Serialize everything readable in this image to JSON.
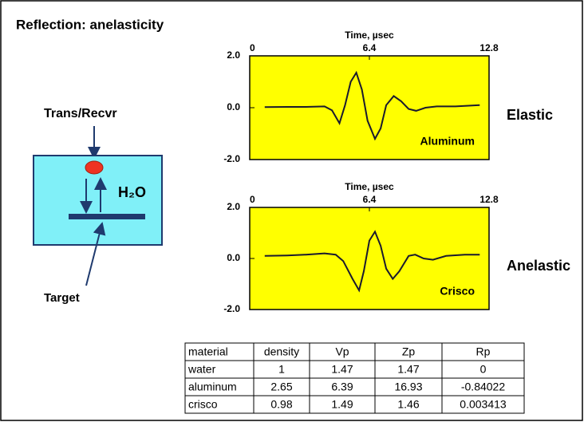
{
  "title": "Reflection:  anelasticity",
  "diagram": {
    "transducer": "Trans/Recvr",
    "medium": "H₂O",
    "target": "Target"
  },
  "chart_data": [
    {
      "type": "line",
      "xlabel": "Time,  µsec",
      "annotation": "Aluminum",
      "side_label": "Elastic",
      "xlim": [
        0,
        12.8
      ],
      "xticks": [
        0,
        6.4,
        12.8
      ],
      "ylim": [
        -2,
        2
      ],
      "yticks": [
        {
          "value": 2,
          "label": "2.0"
        },
        {
          "value": 0,
          "label": "0.0"
        },
        {
          "value": -2,
          "label": "-2.0"
        }
      ],
      "color": "#1a1a2e",
      "x": [
        0.8,
        2,
        3,
        4,
        4.4,
        4.8,
        5.1,
        5.4,
        5.7,
        6.0,
        6.3,
        6.7,
        7.0,
        7.3,
        7.7,
        8.1,
        8.5,
        8.9,
        9.4,
        10,
        11,
        12.3
      ],
      "values": [
        0.02,
        0.03,
        0.03,
        0.05,
        -0.1,
        -0.6,
        0.1,
        1.0,
        1.35,
        0.7,
        -0.5,
        -1.2,
        -0.8,
        0.1,
        0.45,
        0.25,
        -0.05,
        -0.12,
        0.0,
        0.05,
        0.05,
        0.1
      ]
    },
    {
      "type": "line",
      "xlabel": "Time,  µsec",
      "annotation": "Crisco",
      "side_label": "Anelastic",
      "xlim": [
        0,
        12.8
      ],
      "xticks": [
        0,
        6.4,
        12.8
      ],
      "ylim": [
        -2,
        2
      ],
      "yticks": [
        {
          "value": 2,
          "label": "2.0"
        },
        {
          "value": 0,
          "label": "0.0"
        },
        {
          "value": -2,
          "label": "-2.0"
        }
      ],
      "color": "#1a1a2e",
      "x": [
        0.8,
        2,
        3,
        4,
        4.6,
        5.0,
        5.5,
        5.85,
        6.1,
        6.4,
        6.7,
        7.0,
        7.3,
        7.65,
        8.0,
        8.5,
        8.85,
        9.3,
        9.8,
        10.5,
        11.5,
        12.3
      ],
      "values": [
        0.1,
        0.12,
        0.15,
        0.2,
        0.15,
        -0.1,
        -0.8,
        -1.25,
        -0.5,
        0.7,
        1.05,
        0.5,
        -0.4,
        -0.8,
        -0.5,
        0.1,
        0.15,
        0.0,
        -0.05,
        0.1,
        0.15,
        0.15
      ]
    }
  ],
  "table": {
    "header": [
      "material",
      "density",
      "Vp",
      "Zp",
      "Rp"
    ],
    "rows": [
      [
        "water",
        "1",
        "1.47",
        "1.47",
        "0"
      ],
      [
        "aluminum",
        "2.65",
        "6.39",
        "16.93",
        "-0.84022"
      ],
      [
        "crisco",
        "0.98",
        "1.49",
        "1.46",
        "0.003413"
      ]
    ]
  }
}
